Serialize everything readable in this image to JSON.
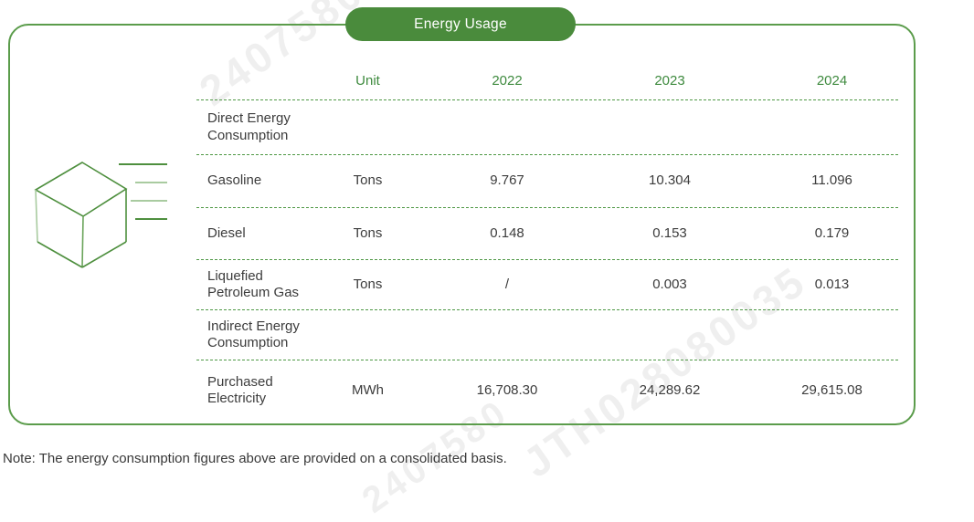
{
  "header": {
    "title": "Energy Usage"
  },
  "table": {
    "columns": [
      "",
      "Unit",
      "2022",
      "2023",
      "2024"
    ],
    "rows": [
      {
        "label": "Direct Energy Consumption",
        "section": true
      },
      {
        "label": "Gasoline",
        "unit": "Tons",
        "v2022": "9.767",
        "v2023": "10.304",
        "v2024": "11.096"
      },
      {
        "label": "Diesel",
        "unit": "Tons",
        "v2022": "0.148",
        "v2023": "0.153",
        "v2024": "0.179"
      },
      {
        "label": "Liquefied Petroleum Gas",
        "unit": "Tons",
        "v2022": "/",
        "v2023": "0.003",
        "v2024": "0.013"
      },
      {
        "label": "Indirect Energy Consumption",
        "section": true
      },
      {
        "label": "Purchased Electricity",
        "unit": "MWh",
        "v2022": "16,708.30",
        "v2023": "24,289.62",
        "v2024": "29,615.08"
      }
    ]
  },
  "note": "Note: The energy consumption figures above are provided on a consolidated basis.",
  "watermarks": [
    "2407580",
    "JTH028080035",
    "2407580"
  ],
  "icon": {
    "name": "cube-wireframe-icon"
  },
  "colors": {
    "accent_green": "#4a8b3c",
    "border_green": "#5b9c4b",
    "dashed_green": "#4f9845",
    "header_text_green": "#3e8a3e",
    "body_text": "#3c3c3c",
    "cube_light_green": "#a9cba0"
  }
}
